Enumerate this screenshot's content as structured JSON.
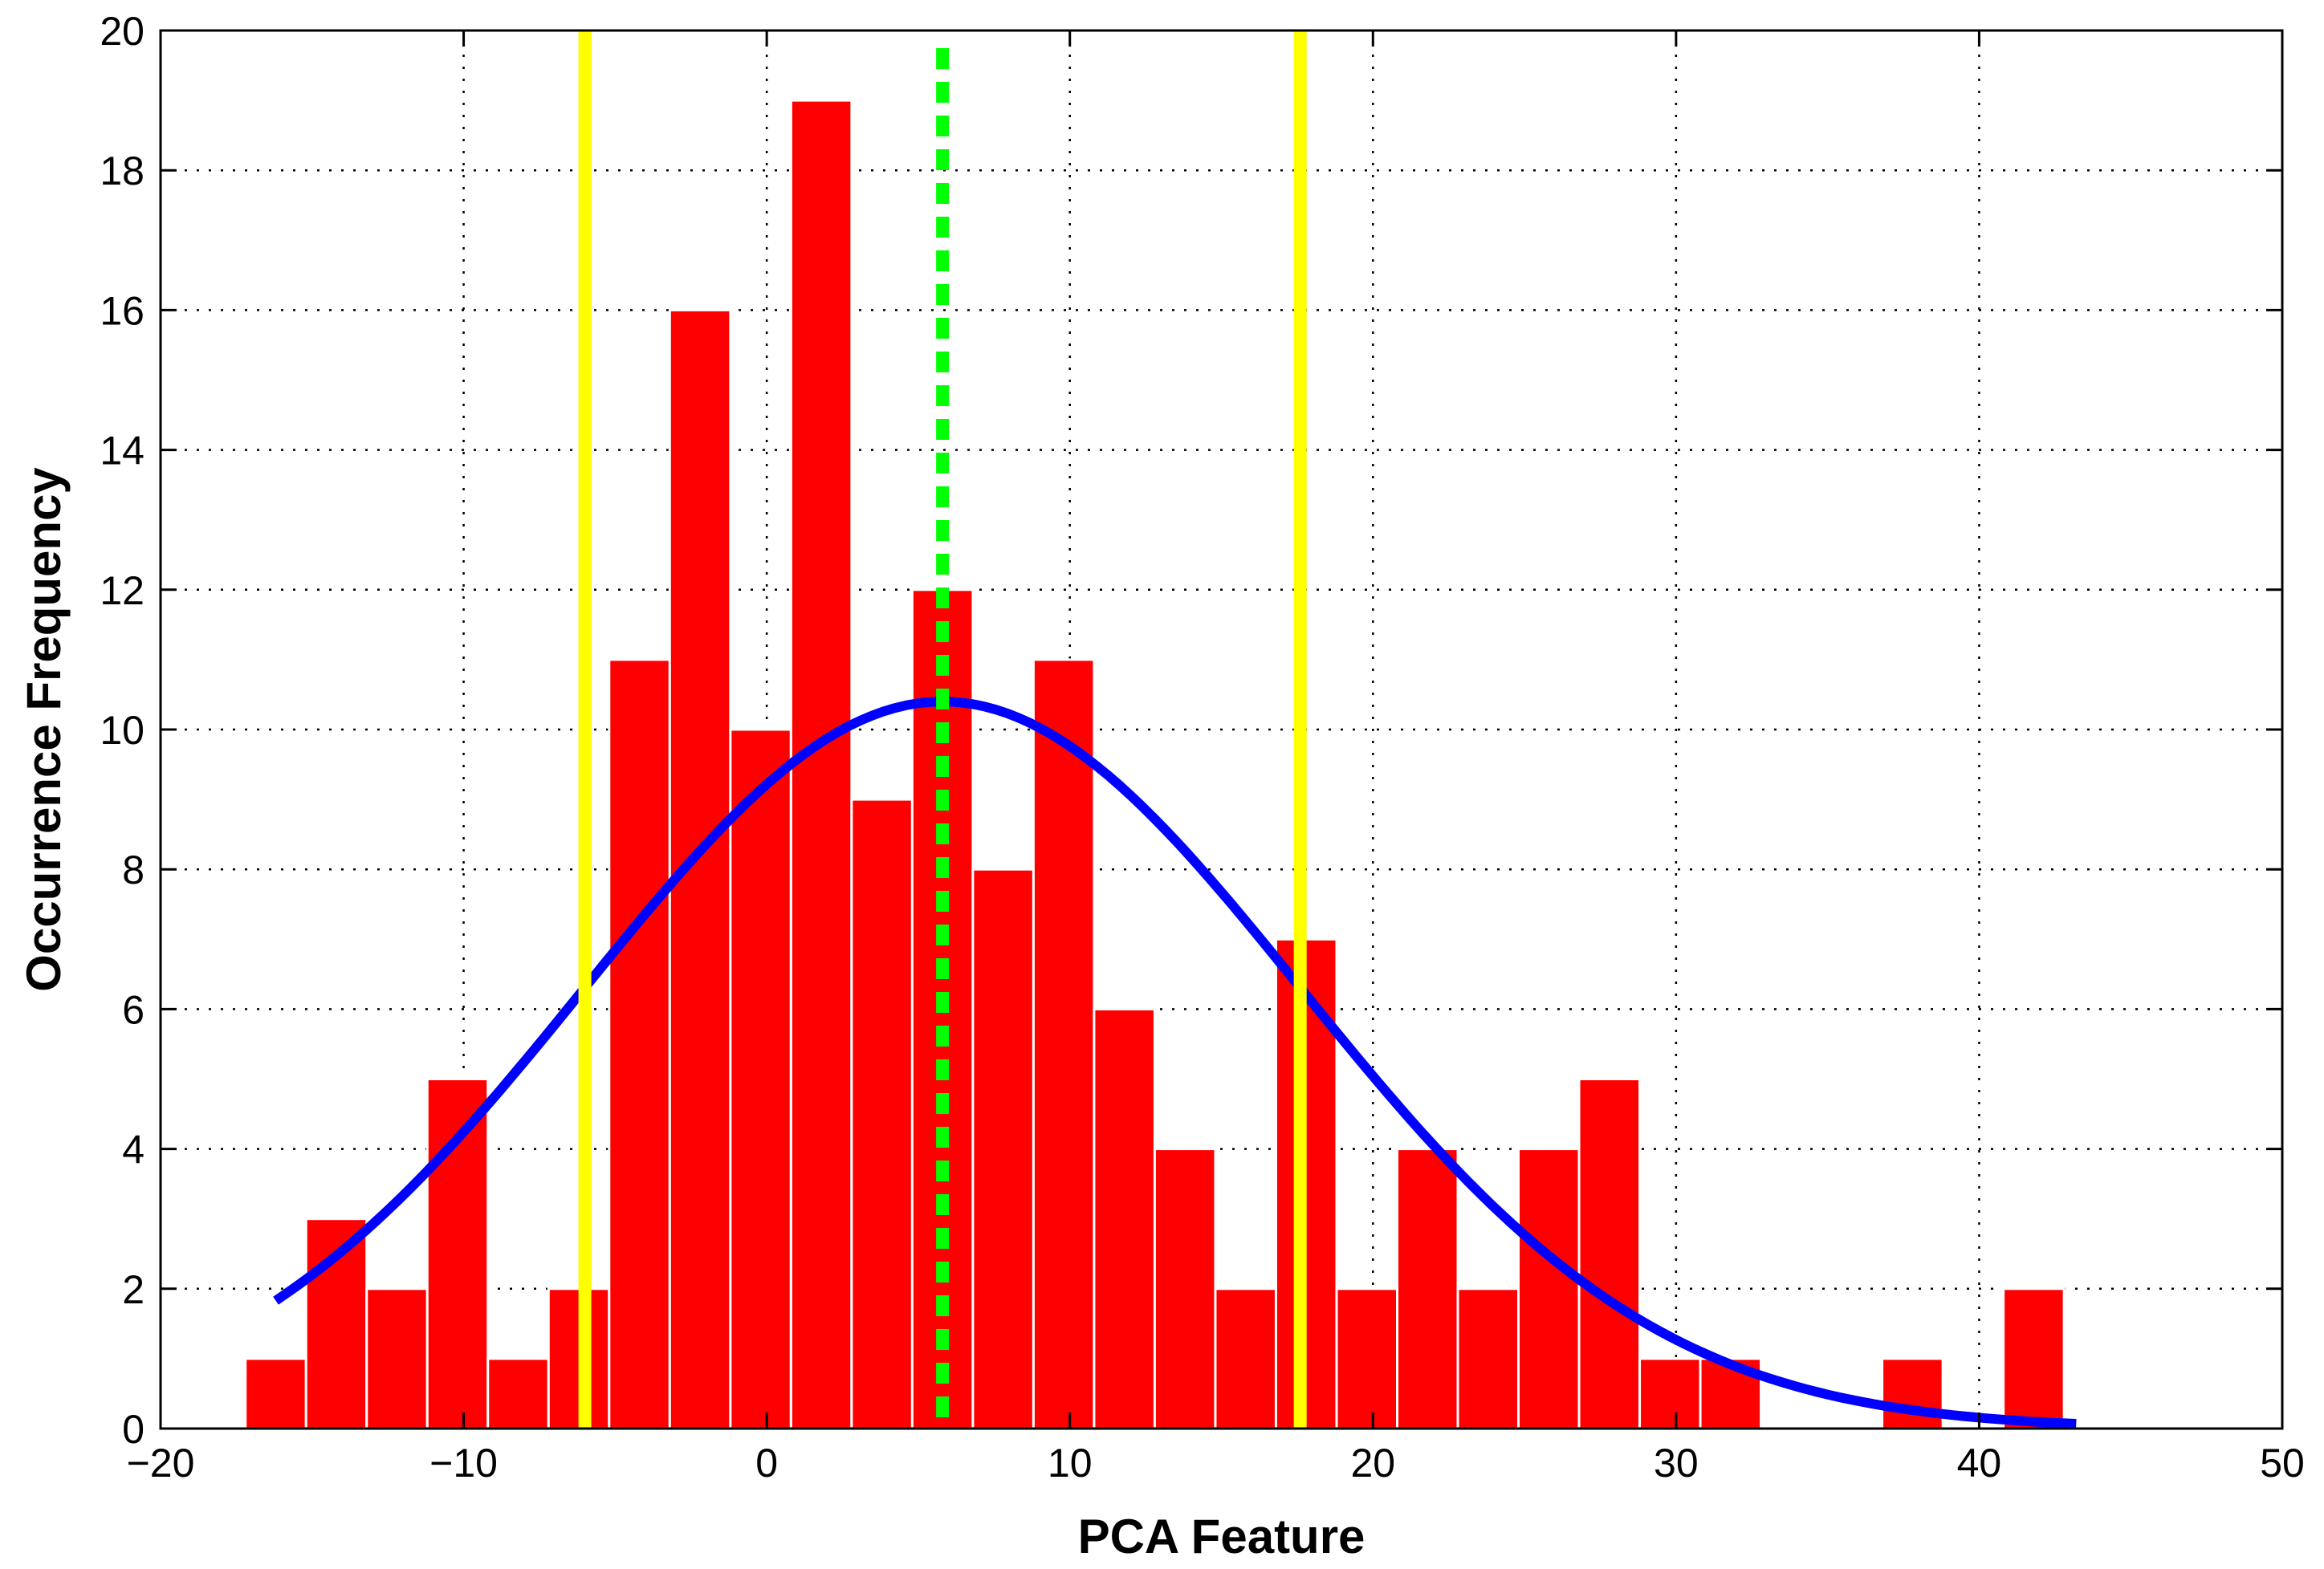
{
  "chart_data": {
    "type": "bar",
    "title": "",
    "xlabel": "PCA Feature",
    "ylabel": "Occurrence Frequency",
    "xlim": [
      -20,
      50
    ],
    "ylim": [
      0,
      20
    ],
    "grid": true,
    "x_ticks": [
      -20,
      -10,
      0,
      10,
      20,
      30,
      40,
      50
    ],
    "x_tick_labels": [
      "−20",
      "−10",
      "0",
      "10",
      "20",
      "30",
      "40",
      "50"
    ],
    "y_ticks": [
      0,
      2,
      4,
      6,
      8,
      10,
      12,
      14,
      16,
      18,
      20
    ],
    "y_tick_labels": [
      "0",
      "2",
      "4",
      "6",
      "8",
      "10",
      "12",
      "14",
      "16",
      "18",
      "20"
    ],
    "histogram": {
      "bin_start": -17.2,
      "bin_width": 2.0,
      "color": "#ff0000",
      "edge_color": "#ffffff",
      "counts": [
        1,
        3,
        2,
        5,
        1,
        2,
        11,
        16,
        10,
        19,
        9,
        12,
        8,
        11,
        6,
        4,
        2,
        7,
        2,
        4,
        2,
        4,
        5,
        1,
        1,
        0,
        0,
        1,
        0,
        2
      ]
    },
    "fitted_curve": {
      "type": "normal",
      "color": "#0000ff",
      "mean": 5.8,
      "std": 11.8,
      "peak": 10.4,
      "x_start": -16.2,
      "x_end": 43.2
    },
    "vertical_lines": [
      {
        "name": "lower-bound",
        "x": -6.0,
        "color": "#ffff00",
        "style": "solid"
      },
      {
        "name": "mean",
        "x": 5.8,
        "color": "#00ff00",
        "style": "dashed"
      },
      {
        "name": "upper-bound",
        "x": 17.6,
        "color": "#ffff00",
        "style": "solid"
      }
    ]
  }
}
